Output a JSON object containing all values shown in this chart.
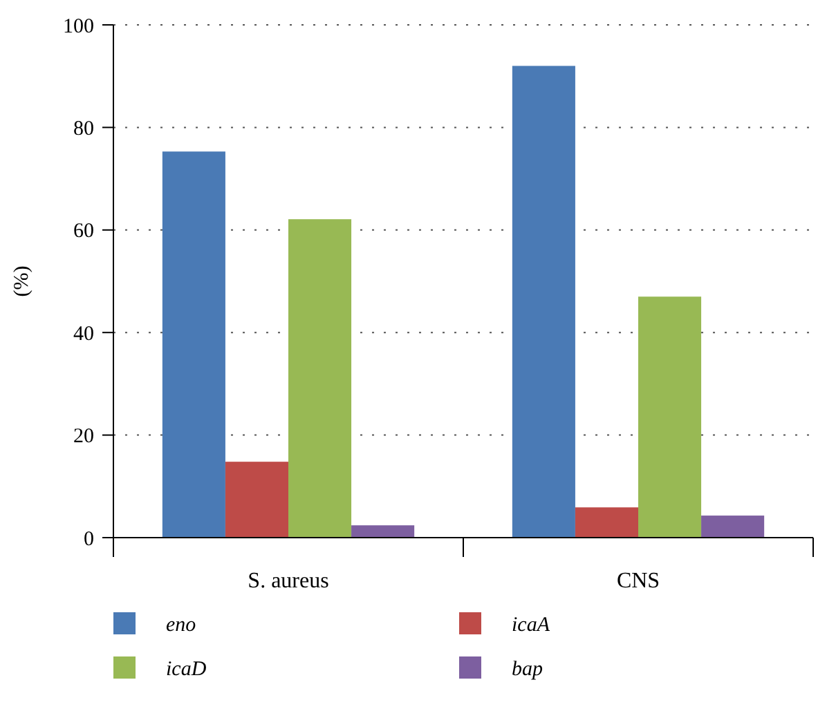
{
  "chart_data": {
    "type": "bar",
    "ylabel": "(%)",
    "categories": [
      "S. aureus",
      "CNS"
    ],
    "series": [
      {
        "name": "eno",
        "color": "#4a7ab5",
        "values": [
          75.3,
          92
        ]
      },
      {
        "name": "icaA",
        "color": "#be4b48",
        "values": [
          14.8,
          5.9
        ]
      },
      {
        "name": "icaD",
        "color": "#98b954",
        "values": [
          62.1,
          47
        ]
      },
      {
        "name": "bap",
        "color": "#7d5fa0",
        "values": [
          2.4,
          4.3
        ]
      }
    ],
    "ylim": [
      0,
      100
    ],
    "yticks": [
      0,
      20,
      40,
      60,
      80,
      100
    ],
    "grid": "y",
    "legend": "bottom"
  }
}
